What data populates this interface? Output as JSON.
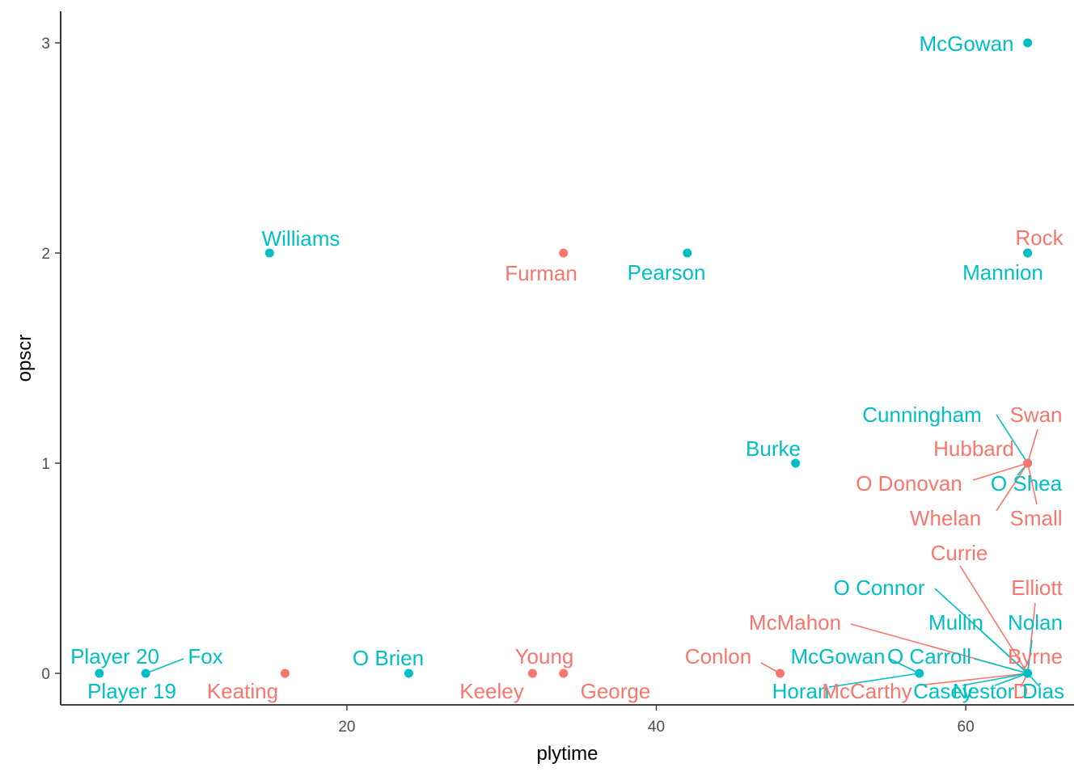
{
  "chart_data": {
    "type": "scatter",
    "xlabel": "plytime",
    "ylabel": "opscr",
    "xlim": [
      1.5,
      67
    ],
    "ylim": [
      -0.15,
      3.15
    ],
    "x_ticks": [
      20,
      40,
      60
    ],
    "y_ticks": [
      0,
      1,
      2,
      3
    ],
    "grid": false,
    "legend": "none",
    "series_colors": {
      "a": "#F8766D",
      "b": "#00BFC4"
    },
    "points": [
      {
        "label": "McGowan",
        "x": 64,
        "y": 3,
        "group": "b"
      },
      {
        "label": "Williams",
        "x": 15,
        "y": 2,
        "group": "b"
      },
      {
        "label": "Furman",
        "x": 34,
        "y": 2,
        "group": "a"
      },
      {
        "label": "Pearson",
        "x": 42,
        "y": 2,
        "group": "b"
      },
      {
        "label": "Rock",
        "x": 64,
        "y": 2,
        "group": "a"
      },
      {
        "label": "Mannion",
        "x": 64,
        "y": 2,
        "group": "b"
      },
      {
        "label": "Burke",
        "x": 49,
        "y": 1,
        "group": "b"
      },
      {
        "label": "Cunningham",
        "x": 64,
        "y": 1,
        "group": "b"
      },
      {
        "label": "Swan",
        "x": 64,
        "y": 1,
        "group": "a"
      },
      {
        "label": "Hubbard",
        "x": 64,
        "y": 1,
        "group": "a"
      },
      {
        "label": "O Donovan",
        "x": 64,
        "y": 1,
        "group": "a"
      },
      {
        "label": "O Shea",
        "x": 64,
        "y": 1,
        "group": "b"
      },
      {
        "label": "Whelan",
        "x": 64,
        "y": 1,
        "group": "a"
      },
      {
        "label": "Small",
        "x": 64,
        "y": 1,
        "group": "a"
      },
      {
        "label": "Player 20",
        "x": 4,
        "y": 0,
        "group": "b"
      },
      {
        "label": "Player 19",
        "x": 4,
        "y": 0,
        "group": "b"
      },
      {
        "label": "Fox",
        "x": 7,
        "y": 0,
        "group": "b"
      },
      {
        "label": "Keating",
        "x": 16,
        "y": 0,
        "group": "a"
      },
      {
        "label": "O Brien",
        "x": 24,
        "y": 0,
        "group": "b"
      },
      {
        "label": "Young",
        "x": 32,
        "y": 0,
        "group": "a"
      },
      {
        "label": "Keeley",
        "x": 32,
        "y": 0,
        "group": "a"
      },
      {
        "label": "George",
        "x": 34,
        "y": 0,
        "group": "a"
      },
      {
        "label": "Conlon",
        "x": 48,
        "y": 0,
        "group": "a"
      },
      {
        "label": "McGowan",
        "x": 57,
        "y": 0,
        "group": "b"
      },
      {
        "label": "Horan",
        "x": 57,
        "y": 0,
        "group": "b"
      },
      {
        "label": "Currie",
        "x": 64,
        "y": 0,
        "group": "a"
      },
      {
        "label": "O Connor",
        "x": 64,
        "y": 0,
        "group": "b"
      },
      {
        "label": "Elliott",
        "x": 64,
        "y": 0,
        "group": "a"
      },
      {
        "label": "McMahon",
        "x": 64,
        "y": 0,
        "group": "a"
      },
      {
        "label": "Mullin",
        "x": 64,
        "y": 0,
        "group": "b"
      },
      {
        "label": "Nolan",
        "x": 64,
        "y": 0,
        "group": "b"
      },
      {
        "label": "O Carroll",
        "x": 64,
        "y": 0,
        "group": "b"
      },
      {
        "label": "Byrne",
        "x": 64,
        "y": 0,
        "group": "a"
      },
      {
        "label": "McCarthy",
        "x": 64,
        "y": 0,
        "group": "a"
      },
      {
        "label": "Casey",
        "x": 64,
        "y": 0,
        "group": "b"
      },
      {
        "label": "Nestor",
        "x": 64,
        "y": 0,
        "group": "b"
      },
      {
        "label": "D",
        "x": 64,
        "y": 0,
        "group": "a"
      },
      {
        "label": "Dias",
        "x": 64,
        "y": 0,
        "group": "b"
      }
    ]
  }
}
